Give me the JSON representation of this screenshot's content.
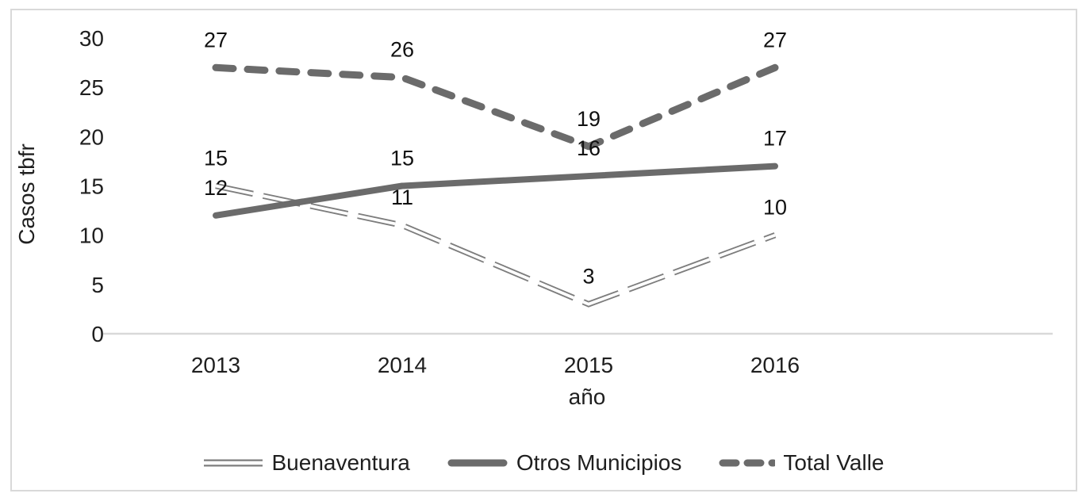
{
  "chart_data": {
    "type": "line",
    "title": "",
    "categories": [
      "2013",
      "2014",
      "2015",
      "2016"
    ],
    "series": [
      {
        "name": "Buenaventura",
        "values": [
          15,
          11,
          3,
          10
        ],
        "style": "double-dash"
      },
      {
        "name": "Otros Municipios",
        "values": [
          12,
          15,
          16,
          17
        ],
        "style": "solid"
      },
      {
        "name": "Total Valle",
        "values": [
          27,
          26,
          19,
          27
        ],
        "style": "dashed"
      }
    ],
    "xlabel": "año",
    "ylabel": "Casos tbfr",
    "yticks": [
      0,
      5,
      10,
      15,
      20,
      25,
      30
    ],
    "ylim": [
      0,
      30
    ],
    "grid": false,
    "data_labels": true,
    "legend_position": "bottom",
    "colors": {
      "line": "#6b6b6b",
      "double_line": "#7d7d7d",
      "axis": "#d9d9d9",
      "border": "#d9d9d9",
      "text": "#1f1f1f",
      "background": "#ffffff"
    }
  }
}
